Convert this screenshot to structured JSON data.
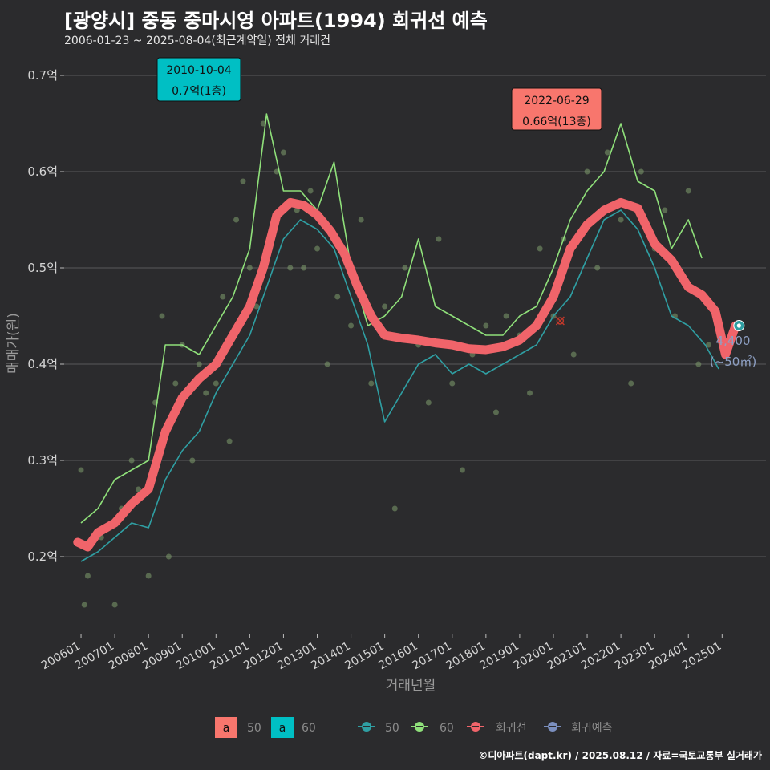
{
  "header": {
    "title": "[광양시] 중동 중마시영 아파트(1994) 회귀선 예측",
    "subtitle": "2006-01-23 ~ 2025-08-04(최근계약일) 전체 거래건"
  },
  "footer": {
    "credit": "©디아파트(dapt.kr) / 2025.08.12 / 자료=국토교통부 실거래가"
  },
  "colors": {
    "background": "#2b2b2d",
    "grid": "#5a5a5c",
    "s50": "#2f9fa3",
    "s60": "#8fe07a",
    "regression": "#f0646a",
    "forecast": "#7b8fbf",
    "label_red": "#f8766d",
    "label_cyan": "#00bfc4"
  },
  "chart_data": {
    "type": "line",
    "title": "[광양시] 중동 중마시영 아파트(1994) 회귀선 예측",
    "xlabel": "거래년월",
    "ylabel": "매매가(원)",
    "ylim": [
      0.12,
      0.72
    ],
    "xlim": [
      2005.5,
      2026.3
    ],
    "y_ticks": [
      0.2,
      0.3,
      0.4,
      0.5,
      0.6,
      0.7
    ],
    "y_tick_labels": [
      "0.2억",
      "0.3억",
      "0.4억",
      "0.5억",
      "0.6억",
      "0.7억"
    ],
    "x_ticks": [
      2006,
      2007,
      2008,
      2009,
      2010,
      2011,
      2012,
      2013,
      2014,
      2015,
      2016,
      2017,
      2018,
      2019,
      2020,
      2021,
      2022,
      2023,
      2024,
      2025
    ],
    "x_tick_labels": [
      "200601",
      "200701",
      "200801",
      "200901",
      "201001",
      "201101",
      "201201",
      "201301",
      "201401",
      "201501",
      "201601",
      "201701",
      "201801",
      "201901",
      "202001",
      "202101",
      "202201",
      "202301",
      "202401",
      "202501"
    ],
    "series": [
      {
        "name": "50",
        "x": [
          2006.0,
          2006.5,
          2007.0,
          2007.5,
          2008.0,
          2008.5,
          2009.0,
          2009.5,
          2010.0,
          2010.5,
          2011.0,
          2011.5,
          2012.0,
          2012.5,
          2013.0,
          2013.5,
          2014.0,
          2014.5,
          2015.0,
          2015.5,
          2016.0,
          2016.5,
          2017.0,
          2017.5,
          2018.0,
          2018.5,
          2019.0,
          2019.5,
          2020.0,
          2020.5,
          2021.0,
          2021.5,
          2022.0,
          2022.5,
          2023.0,
          2023.5,
          2024.0,
          2024.5,
          2024.9
        ],
        "values": [
          0.195,
          0.205,
          0.22,
          0.235,
          0.23,
          0.28,
          0.31,
          0.33,
          0.37,
          0.4,
          0.43,
          0.48,
          0.53,
          0.55,
          0.54,
          0.52,
          0.47,
          0.42,
          0.34,
          0.37,
          0.4,
          0.41,
          0.39,
          0.4,
          0.39,
          0.4,
          0.41,
          0.42,
          0.45,
          0.47,
          0.51,
          0.55,
          0.56,
          0.54,
          0.5,
          0.45,
          0.44,
          0.42,
          0.395
        ]
      },
      {
        "name": "60",
        "x": [
          2006.0,
          2006.5,
          2007.0,
          2007.5,
          2008.0,
          2008.5,
          2009.0,
          2009.5,
          2010.0,
          2010.5,
          2011.0,
          2011.5,
          2012.0,
          2012.5,
          2013.0,
          2013.5,
          2014.0,
          2014.5,
          2015.0,
          2015.5,
          2016.0,
          2016.5,
          2017.0,
          2017.5,
          2018.0,
          2018.5,
          2019.0,
          2019.5,
          2020.0,
          2020.5,
          2021.0,
          2021.5,
          2022.0,
          2022.5,
          2023.0,
          2023.5,
          2024.0,
          2024.4
        ],
        "values": [
          0.235,
          0.25,
          0.28,
          0.29,
          0.3,
          0.42,
          0.42,
          0.41,
          0.44,
          0.47,
          0.52,
          0.66,
          0.58,
          0.58,
          0.56,
          0.61,
          0.5,
          0.44,
          0.45,
          0.47,
          0.53,
          0.46,
          0.45,
          0.44,
          0.43,
          0.43,
          0.45,
          0.46,
          0.5,
          0.55,
          0.58,
          0.6,
          0.65,
          0.59,
          0.58,
          0.52,
          0.55,
          0.51
        ]
      },
      {
        "name": "회귀선",
        "x": [
          2005.9,
          2006.2,
          2006.5,
          2007.0,
          2007.5,
          2008.0,
          2008.5,
          2009.0,
          2009.5,
          2010.0,
          2010.5,
          2011.0,
          2011.4,
          2011.8,
          2012.2,
          2012.6,
          2013.0,
          2013.4,
          2013.8,
          2014.2,
          2014.6,
          2015.0,
          2015.5,
          2016.0,
          2016.5,
          2017.0,
          2017.5,
          2018.0,
          2018.5,
          2019.0,
          2019.5,
          2020.0,
          2020.5,
          2021.0,
          2021.5,
          2022.0,
          2022.5,
          2023.0,
          2023.5,
          2024.0,
          2024.4,
          2024.8,
          2025.1,
          2025.4
        ],
        "values": [
          0.215,
          0.21,
          0.225,
          0.235,
          0.255,
          0.27,
          0.33,
          0.365,
          0.385,
          0.4,
          0.43,
          0.46,
          0.5,
          0.555,
          0.568,
          0.565,
          0.555,
          0.538,
          0.515,
          0.48,
          0.45,
          0.43,
          0.427,
          0.425,
          0.422,
          0.42,
          0.416,
          0.415,
          0.418,
          0.425,
          0.44,
          0.47,
          0.52,
          0.545,
          0.56,
          0.568,
          0.562,
          0.525,
          0.508,
          0.48,
          0.472,
          0.455,
          0.41,
          0.44
        ]
      }
    ],
    "scatter_points": {
      "name": "거래건",
      "x": [
        2006.0,
        2006.1,
        2006.2,
        2006.6,
        2007.0,
        2007.2,
        2007.5,
        2007.7,
        2008.0,
        2008.2,
        2008.4,
        2008.6,
        2008.8,
        2009.0,
        2009.3,
        2009.5,
        2009.7,
        2010.0,
        2010.2,
        2010.4,
        2010.6,
        2010.8,
        2011.0,
        2011.2,
        2011.4,
        2011.6,
        2011.8,
        2012.0,
        2012.2,
        2012.4,
        2012.6,
        2012.8,
        2013.0,
        2013.3,
        2013.6,
        2014.0,
        2014.3,
        2014.6,
        2015.0,
        2015.3,
        2015.6,
        2016.0,
        2016.3,
        2016.6,
        2017.0,
        2017.3,
        2017.6,
        2018.0,
        2018.3,
        2018.6,
        2019.0,
        2019.3,
        2019.6,
        2020.0,
        2020.3,
        2020.6,
        2021.0,
        2021.3,
        2021.6,
        2022.0,
        2022.3,
        2022.6,
        2023.0,
        2023.3,
        2023.6,
        2024.0,
        2024.3,
        2024.6
      ],
      "values": [
        0.29,
        0.15,
        0.18,
        0.22,
        0.15,
        0.25,
        0.3,
        0.27,
        0.18,
        0.36,
        0.45,
        0.2,
        0.38,
        0.42,
        0.3,
        0.4,
        0.37,
        0.38,
        0.47,
        0.32,
        0.55,
        0.59,
        0.5,
        0.46,
        0.65,
        0.52,
        0.6,
        0.62,
        0.5,
        0.56,
        0.5,
        0.58,
        0.52,
        0.4,
        0.47,
        0.44,
        0.55,
        0.38,
        0.46,
        0.25,
        0.5,
        0.42,
        0.36,
        0.53,
        0.38,
        0.29,
        0.41,
        0.44,
        0.35,
        0.45,
        0.43,
        0.37,
        0.52,
        0.45,
        0.53,
        0.41,
        0.6,
        0.5,
        0.62,
        0.55,
        0.38,
        0.6,
        0.52,
        0.56,
        0.45,
        0.58,
        0.4,
        0.42
      ]
    },
    "highlight_points": [
      {
        "x": 2020.2,
        "value": 0.445
      }
    ],
    "end_point": {
      "x": 2025.5,
      "value": 0.44
    },
    "annotations": {
      "high_50": {
        "date": "2022-06-29",
        "price": "0.66억(13층)"
      },
      "high_60": {
        "date": "2010-10-04",
        "price": "0.7억(1층)"
      },
      "forecast": {
        "value": "4,400",
        "area": "(~50㎡)"
      }
    },
    "legend": {
      "fill_items": [
        {
          "key": "a",
          "label": "50"
        },
        {
          "key": "a",
          "label": "60"
        }
      ],
      "line_items": [
        "50",
        "60",
        "회귀선",
        "회귀예측"
      ]
    }
  }
}
